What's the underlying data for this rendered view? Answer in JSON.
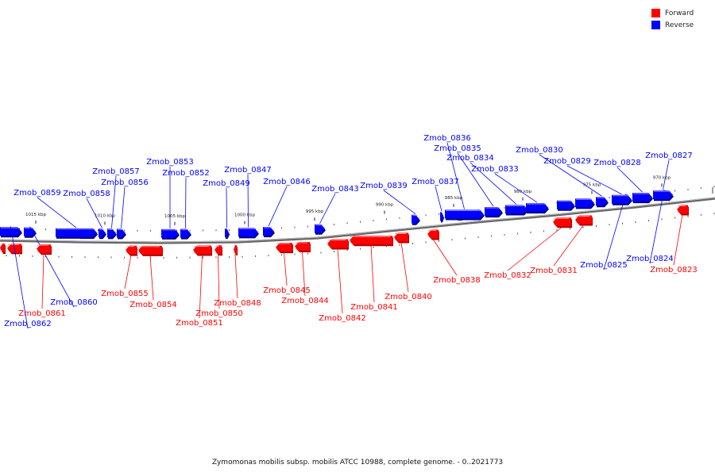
{
  "caption": "Zymomonas mobilis subsp. mobilis ATCC 10988, complete genome. - 0..2021773",
  "legend": [
    {
      "label": "Forward",
      "color": "#ff0000"
    },
    {
      "label": "Reverse",
      "color": "#0000ff"
    }
  ],
  "colors": {
    "forward": "#ff0000",
    "reverse": "#0000ff",
    "backbone": "#888888"
  },
  "scale_labels": [
    "970 kbp",
    "975 kbp",
    "980 kbp",
    "985 kbp",
    "990 kbp",
    "995 kbp",
    "1000 kbp",
    "1005 kbp",
    "1010 kbp",
    "1015 kbp"
  ],
  "genes": [
    {
      "name": "Zmob_0823",
      "strand": "forward"
    },
    {
      "name": "Zmob_0824",
      "strand": "reverse"
    },
    {
      "name": "Zmob_0825",
      "strand": "reverse"
    },
    {
      "name": "Zmob_0827",
      "strand": "reverse"
    },
    {
      "name": "Zmob_0828",
      "strand": "reverse"
    },
    {
      "name": "Zmob_0829",
      "strand": "reverse"
    },
    {
      "name": "Zmob_0830",
      "strand": "reverse"
    },
    {
      "name": "Zmob_0831",
      "strand": "forward"
    },
    {
      "name": "Zmob_0832",
      "strand": "forward"
    },
    {
      "name": "Zmob_0833",
      "strand": "reverse"
    },
    {
      "name": "Zmob_0834",
      "strand": "reverse"
    },
    {
      "name": "Zmob_0835",
      "strand": "reverse"
    },
    {
      "name": "Zmob_0836",
      "strand": "reverse"
    },
    {
      "name": "Zmob_0837",
      "strand": "reverse"
    },
    {
      "name": "Zmob_0838",
      "strand": "forward"
    },
    {
      "name": "Zmob_0839",
      "strand": "reverse"
    },
    {
      "name": "Zmob_0840",
      "strand": "forward"
    },
    {
      "name": "Zmob_0841",
      "strand": "forward"
    },
    {
      "name": "Zmob_0842",
      "strand": "forward"
    },
    {
      "name": "Zmob_0843",
      "strand": "reverse"
    },
    {
      "name": "Zmob_0844",
      "strand": "forward"
    },
    {
      "name": "Zmob_0845",
      "strand": "forward"
    },
    {
      "name": "Zmob_0846",
      "strand": "reverse"
    },
    {
      "name": "Zmob_0847",
      "strand": "reverse"
    },
    {
      "name": "Zmob_0848",
      "strand": "forward"
    },
    {
      "name": "Zmob_0849",
      "strand": "reverse"
    },
    {
      "name": "Zmob_0850",
      "strand": "forward"
    },
    {
      "name": "Zmob_0851",
      "strand": "forward"
    },
    {
      "name": "Zmob_0852",
      "strand": "reverse"
    },
    {
      "name": "Zmob_0853",
      "strand": "reverse"
    },
    {
      "name": "Zmob_0854",
      "strand": "forward"
    },
    {
      "name": "Zmob_0855",
      "strand": "forward"
    },
    {
      "name": "Zmob_0856",
      "strand": "reverse"
    },
    {
      "name": "Zmob_0857",
      "strand": "reverse"
    },
    {
      "name": "Zmob_0858",
      "strand": "reverse"
    },
    {
      "name": "Zmob_0859",
      "strand": "reverse"
    },
    {
      "name": "Zmob_0860",
      "strand": "reverse"
    },
    {
      "name": "Zmob_0861",
      "strand": "forward"
    },
    {
      "name": "Zmob_0862",
      "strand": "reverse"
    }
  ]
}
